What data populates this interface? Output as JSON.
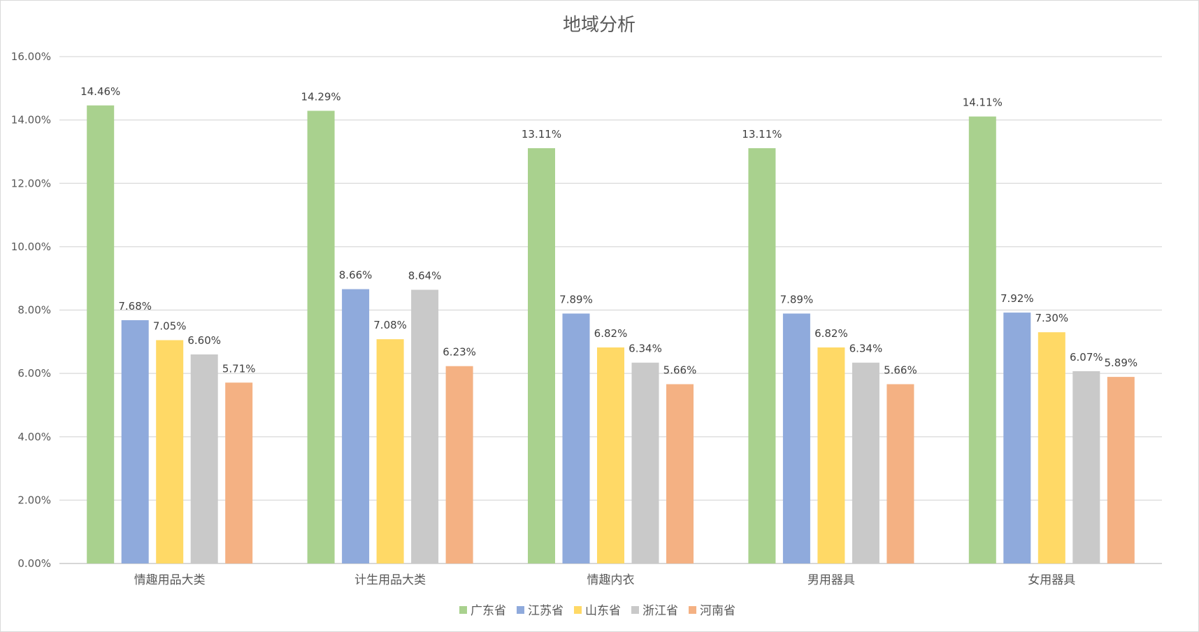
{
  "chart_data": {
    "type": "bar",
    "title": "地域分析",
    "xlabel": "",
    "ylabel": "",
    "categories": [
      "情趣用品大类",
      "计生用品大类",
      "情趣内衣",
      "男用器具",
      "女用器具"
    ],
    "series": [
      {
        "name": "广东省",
        "color": "#a9d18e",
        "values": [
          14.46,
          14.29,
          13.11,
          13.11,
          14.11
        ],
        "labels": [
          "14.46%",
          "14.29%",
          "13.11%",
          "13.11%",
          "14.11%"
        ]
      },
      {
        "name": "江苏省",
        "color": "#8faadc",
        "values": [
          7.68,
          8.66,
          7.89,
          7.89,
          7.92
        ],
        "labels": [
          "7.68%",
          "8.66%",
          "7.89%",
          "7.89%",
          "7.92%"
        ]
      },
      {
        "name": "山东省",
        "color": "#ffd966",
        "values": [
          7.05,
          7.08,
          6.82,
          6.82,
          7.3
        ],
        "labels": [
          "7.05%",
          "7.08%",
          "6.82%",
          "6.82%",
          "7.30%"
        ]
      },
      {
        "name": "浙江省",
        "color": "#c9c9c9",
        "values": [
          6.6,
          8.64,
          6.34,
          6.34,
          6.07
        ],
        "labels": [
          "6.60%",
          "8.64%",
          "6.34%",
          "6.34%",
          "6.07%"
        ]
      },
      {
        "name": "河南省",
        "color": "#f4b183",
        "values": [
          5.71,
          6.23,
          5.66,
          5.66,
          5.89
        ],
        "labels": [
          "5.71%",
          "6.23%",
          "5.66%",
          "5.66%",
          "5.89%"
        ]
      }
    ],
    "ylim": [
      0,
      16
    ],
    "yticks": [
      0,
      2,
      4,
      6,
      8,
      10,
      12,
      14,
      16
    ],
    "ytick_labels": [
      "0.00%",
      "2.00%",
      "4.00%",
      "6.00%",
      "8.00%",
      "10.00%",
      "12.00%",
      "14.00%",
      "16.00%"
    ],
    "grid": true,
    "legend_position": "bottom"
  }
}
